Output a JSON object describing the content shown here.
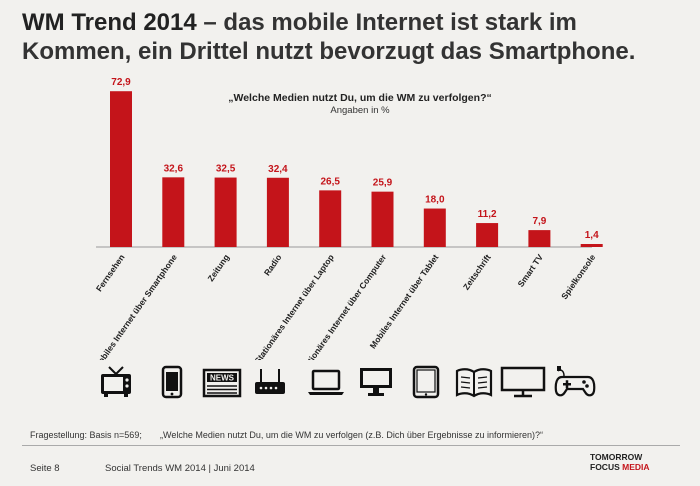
{
  "header": {
    "title_bold": "WM Trend 2014",
    "title_rest": " – das mobile Internet ist stark im Kommen, ein Drittel nutzt bevorzugt das Smartphone."
  },
  "chart_data": {
    "type": "bar",
    "title": "„Welche Medien nutzt Du, um die WM zu verfolgen?“",
    "subtitle": "Angaben in %",
    "categories": [
      "Fernsehen",
      "Mobiles Internet über Smartphone",
      "Zeitung",
      "Radio",
      "Stationäres Internet über Laptop",
      "Stationäres Internet über Computer",
      "Mobiles Internet über Tablet",
      "Zeitschrift",
      "Smart TV",
      "Spielkonsole"
    ],
    "values": [
      72.9,
      32.6,
      32.5,
      32.4,
      26.5,
      25.9,
      18.0,
      11.2,
      7.9,
      1.4
    ],
    "value_labels": [
      "72,9",
      "32,6",
      "32,5",
      "32,4",
      "26,5",
      "25,9",
      "18,0",
      "11,2",
      "7,9",
      "1,4"
    ],
    "ylim": [
      0,
      73
    ],
    "grid": false,
    "bar_color": "#c4141a"
  },
  "icons": [
    "tv-icon",
    "smartphone-icon",
    "newspaper-icon",
    "radio-router-icon",
    "laptop-icon",
    "monitor-icon",
    "tablet-icon",
    "book-icon",
    "smart-tv-icon",
    "gamepad-icon"
  ],
  "icon_labels": {
    "newspaper": "NEWS"
  },
  "footnote": {
    "basis": "Fragestellung: Basis n=569;",
    "question": "„Welche Medien nutzt Du, um die WM zu verfolgen (z.B. Dich über Ergebnisse zu informieren)?“"
  },
  "footer": {
    "page": "Seite 8",
    "source": "Social Trends WM 2014 | Juni 2014",
    "logo_line1": "TOMORROW",
    "logo_line2a": "FOCUS",
    "logo_line2b": "MEDIA"
  }
}
